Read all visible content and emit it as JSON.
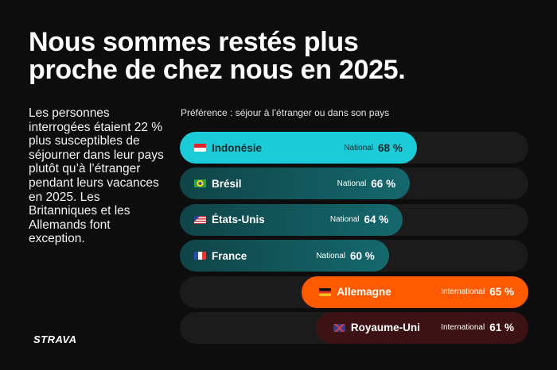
{
  "title_lines": [
    "Nous sommes restés plus",
    "proche de chez nous en 2025."
  ],
  "body_lines": [
    "Les personnes",
    "interrogées étaient 22 %",
    "plus susceptibles de",
    "séjourner dans leur pays",
    "plutôt qu’à l’étranger",
    "pendant leurs vacances",
    "en 2025. Les",
    "Britanniques et les",
    "Allemands font",
    "exception."
  ],
  "logo": "STRAVA",
  "chart_data": {
    "type": "bar",
    "orientation": "horizontal",
    "title": "Préférence : séjour à l’étranger ou dans son pays",
    "xlim": [
      0,
      100
    ],
    "categories": [
      "Indonésie",
      "Brésil",
      "États-Unis",
      "France",
      "Allemagne",
      "Royaume-Uni"
    ],
    "bars": [
      {
        "country": "Indonésie",
        "preference": "National",
        "value": 68,
        "value_label": "68 %",
        "color": "#1ccbd8",
        "text_color": "#0d2a2e",
        "align": "left",
        "flag": [
          "#e2242b",
          "#ffffff"
        ]
      },
      {
        "country": "Brésil",
        "preference": "National",
        "value": 66,
        "value_label": "66 %",
        "color": "#14686d",
        "text_color": "#ffffff",
        "align": "left",
        "flag": [
          "#2aa14a",
          "#f6d31c"
        ]
      },
      {
        "country": "États-Unis",
        "preference": "National",
        "value": 64,
        "value_label": "64 %",
        "color": "#14686d",
        "text_color": "#ffffff",
        "align": "left",
        "flag": [
          "#c8323c",
          "#ffffff"
        ]
      },
      {
        "country": "France",
        "preference": "National",
        "value": 60,
        "value_label": "60 %",
        "color": "#14686d",
        "text_color": "#ffffff",
        "align": "left",
        "flag": [
          "#2b4ea8",
          "#e33a3a"
        ]
      },
      {
        "country": "Allemagne",
        "preference": "International",
        "value": 65,
        "value_label": "65 %",
        "color": "#ff5a00",
        "text_color": "#ffffff",
        "align": "right",
        "flag": [
          "#111111",
          "#e8332a",
          "#f5c21a"
        ]
      },
      {
        "country": "Royaume-Uni",
        "preference": "International",
        "value": 61,
        "value_label": "61 %",
        "color": "#3d1215",
        "text_color": "#ffffff",
        "align": "right",
        "flag": [
          "#2a3f8f",
          "#d93a44"
        ]
      }
    ]
  }
}
